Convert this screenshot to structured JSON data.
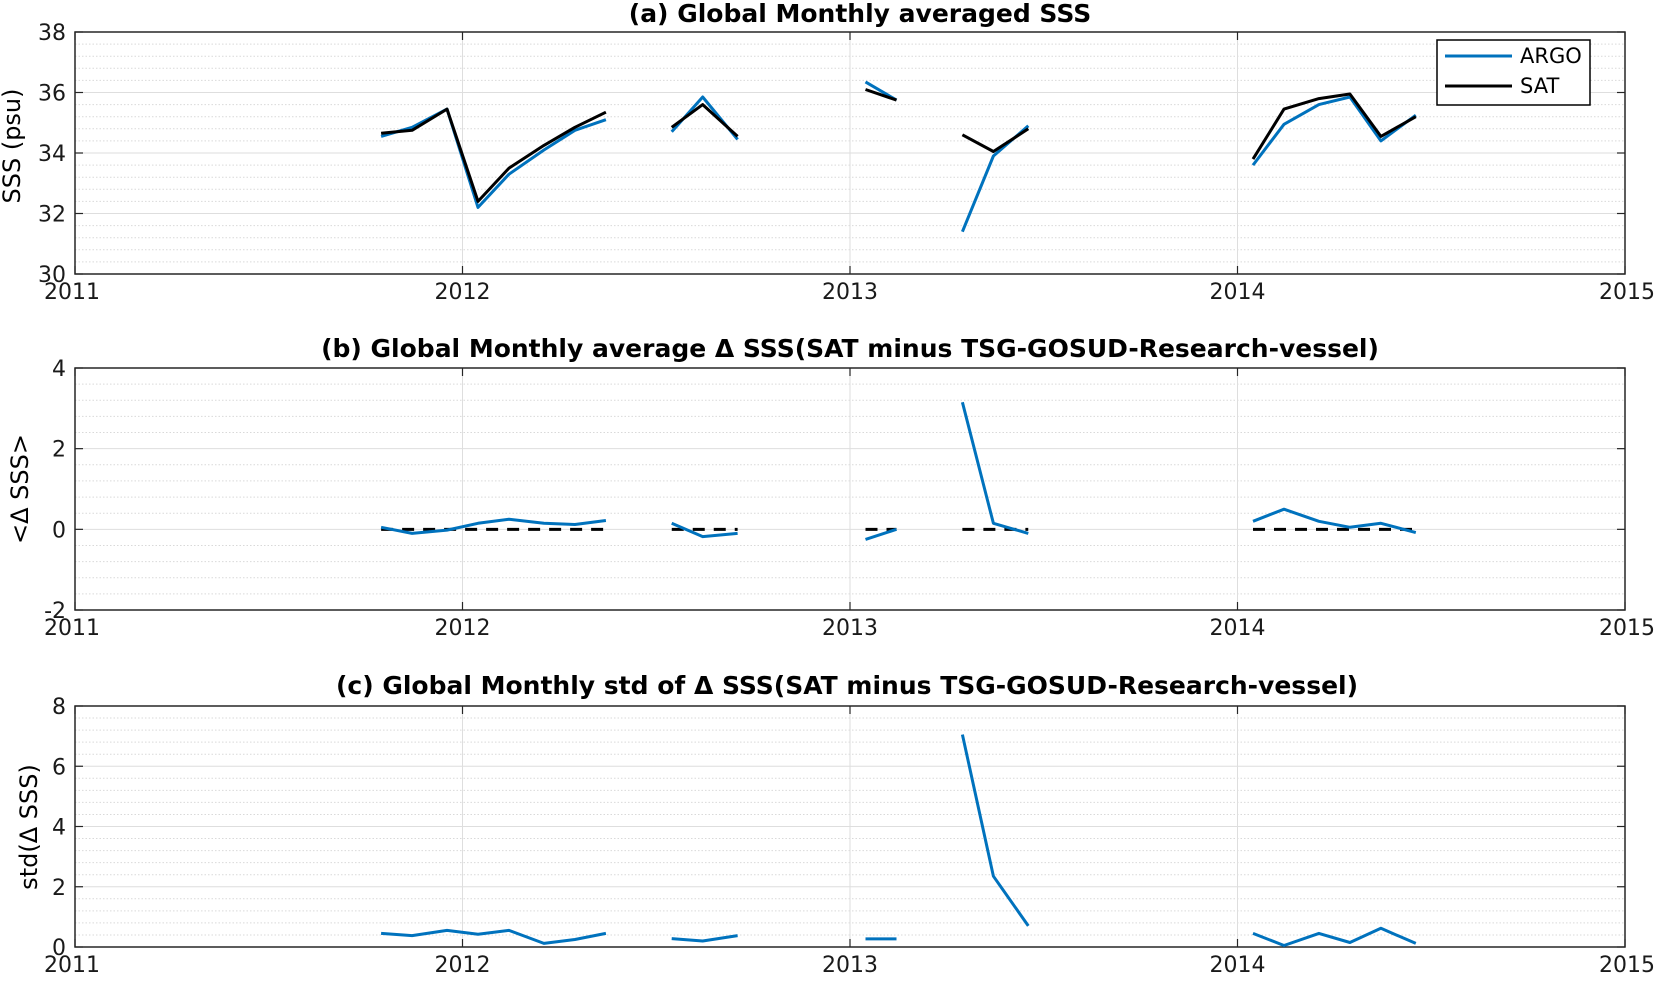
{
  "chart_data": [
    {
      "type": "line",
      "title": "(a) Global Monthly averaged SSS",
      "ylabel": "SSS (psu)",
      "xlabel": "",
      "xlim": [
        2011,
        2015
      ],
      "ylim": [
        30,
        38
      ],
      "xticks": [
        2011,
        2012,
        2013,
        2014,
        2015
      ],
      "yticks": [
        30,
        32,
        34,
        36,
        38
      ],
      "xtick_labels": [
        "2011",
        "2012",
        "2013",
        "2014",
        "2015"
      ],
      "ytick_labels": [
        "30",
        "32",
        "34",
        "36",
        "38"
      ],
      "grid": true,
      "minor_grid": true,
      "legend": "top-right",
      "series": [
        {
          "name": "ARGO",
          "color": "#0072BD",
          "segments": [
            [
              [
                2011.79,
                34.55
              ],
              [
                2011.87,
                34.85
              ],
              [
                2011.96,
                35.45
              ],
              [
                2012.04,
                32.2
              ],
              [
                2012.12,
                33.3
              ],
              [
                2012.21,
                34.1
              ],
              [
                2012.29,
                34.75
              ],
              [
                2012.37,
                35.1
              ]
            ],
            [
              [
                2012.54,
                34.7
              ],
              [
                2012.62,
                35.85
              ],
              [
                2012.71,
                34.45
              ]
            ],
            [
              [
                2013.04,
                36.35
              ],
              [
                2013.12,
                35.75
              ]
            ],
            [
              [
                2013.29,
                31.4
              ],
              [
                2013.37,
                33.9
              ],
              [
                2013.46,
                34.9
              ]
            ],
            [
              [
                2014.04,
                33.6
              ],
              [
                2014.12,
                34.95
              ],
              [
                2014.21,
                35.6
              ],
              [
                2014.29,
                35.85
              ],
              [
                2014.37,
                34.4
              ],
              [
                2014.46,
                35.25
              ]
            ]
          ]
        },
        {
          "name": "SAT",
          "color": "#000000",
          "segments": [
            [
              [
                2011.79,
                34.65
              ],
              [
                2011.87,
                34.75
              ],
              [
                2011.96,
                35.45
              ],
              [
                2012.04,
                32.4
              ],
              [
                2012.12,
                33.5
              ],
              [
                2012.21,
                34.25
              ],
              [
                2012.29,
                34.85
              ],
              [
                2012.37,
                35.35
              ]
            ],
            [
              [
                2012.54,
                34.85
              ],
              [
                2012.62,
                35.6
              ],
              [
                2012.71,
                34.55
              ]
            ],
            [
              [
                2013.04,
                36.1
              ],
              [
                2013.12,
                35.75
              ]
            ],
            [
              [
                2013.29,
                34.6
              ],
              [
                2013.37,
                34.05
              ],
              [
                2013.46,
                34.8
              ]
            ],
            [
              [
                2014.04,
                33.8
              ],
              [
                2014.12,
                35.45
              ],
              [
                2014.21,
                35.8
              ],
              [
                2014.29,
                35.95
              ],
              [
                2014.37,
                34.55
              ],
              [
                2014.46,
                35.2
              ]
            ]
          ]
        }
      ]
    },
    {
      "type": "line",
      "title": "(b) Global Monthly average Δ SSS(SAT minus TSG-GOSUD-Research-vessel)",
      "ylabel": "<Δ SSS>",
      "xlabel": "",
      "xlim": [
        2011,
        2015
      ],
      "ylim": [
        -2,
        4
      ],
      "xticks": [
        2011,
        2012,
        2013,
        2014,
        2015
      ],
      "yticks": [
        -2,
        0,
        2,
        4
      ],
      "xtick_labels": [
        "2011",
        "2012",
        "2013",
        "2014",
        "2015"
      ],
      "ytick_labels": [
        "-2",
        "0",
        "2",
        "4"
      ],
      "grid": true,
      "minor_grid": true,
      "zero_reference": {
        "color": "#000000",
        "dashed": true,
        "segments": [
          [
            2011.79,
            2012.37
          ],
          [
            2012.54,
            2012.71
          ],
          [
            2013.04,
            2013.12
          ],
          [
            2013.29,
            2013.46
          ],
          [
            2014.04,
            2014.46
          ]
        ]
      },
      "series": [
        {
          "color": "#0072BD",
          "segments": [
            [
              [
                2011.79,
                0.05
              ],
              [
                2011.87,
                -0.1
              ],
              [
                2011.96,
                -0.02
              ],
              [
                2012.04,
                0.15
              ],
              [
                2012.12,
                0.25
              ],
              [
                2012.21,
                0.15
              ],
              [
                2012.29,
                0.12
              ],
              [
                2012.37,
                0.22
              ]
            ],
            [
              [
                2012.54,
                0.15
              ],
              [
                2012.62,
                -0.18
              ],
              [
                2012.71,
                -0.1
              ]
            ],
            [
              [
                2013.04,
                -0.25
              ],
              [
                2013.12,
                0.0
              ]
            ],
            [
              [
                2013.29,
                3.15
              ],
              [
                2013.37,
                0.15
              ],
              [
                2013.46,
                -0.1
              ]
            ],
            [
              [
                2014.04,
                0.2
              ],
              [
                2014.12,
                0.5
              ],
              [
                2014.21,
                0.2
              ],
              [
                2014.29,
                0.05
              ],
              [
                2014.37,
                0.15
              ],
              [
                2014.46,
                -0.08
              ]
            ]
          ]
        }
      ]
    },
    {
      "type": "line",
      "title": "(c) Global Monthly std of Δ SSS(SAT minus TSG-GOSUD-Research-vessel)",
      "ylabel": "std(Δ SSS)",
      "xlabel": "",
      "xlim": [
        2011,
        2015
      ],
      "ylim": [
        0,
        8
      ],
      "xticks": [
        2011,
        2012,
        2013,
        2014,
        2015
      ],
      "yticks": [
        0,
        2,
        4,
        6,
        8
      ],
      "xtick_labels": [
        "2011",
        "2012",
        "2013",
        "2014",
        "2015"
      ],
      "ytick_labels": [
        "0",
        "2",
        "4",
        "6",
        "8"
      ],
      "grid": true,
      "minor_grid": true,
      "series": [
        {
          "color": "#0072BD",
          "segments": [
            [
              [
                2011.79,
                0.45
              ],
              [
                2011.87,
                0.38
              ],
              [
                2011.96,
                0.55
              ],
              [
                2012.04,
                0.42
              ],
              [
                2012.12,
                0.55
              ],
              [
                2012.21,
                0.12
              ],
              [
                2012.29,
                0.25
              ],
              [
                2012.37,
                0.45
              ]
            ],
            [
              [
                2012.54,
                0.28
              ],
              [
                2012.62,
                0.2
              ],
              [
                2012.71,
                0.38
              ]
            ],
            [
              [
                2013.04,
                0.27
              ],
              [
                2013.12,
                0.27
              ]
            ],
            [
              [
                2013.29,
                7.05
              ],
              [
                2013.37,
                2.35
              ],
              [
                2013.46,
                0.7
              ]
            ],
            [
              [
                2014.04,
                0.45
              ],
              [
                2014.12,
                0.05
              ],
              [
                2014.21,
                0.45
              ],
              [
                2014.29,
                0.15
              ],
              [
                2014.37,
                0.62
              ],
              [
                2014.46,
                0.12
              ]
            ]
          ]
        }
      ]
    }
  ]
}
